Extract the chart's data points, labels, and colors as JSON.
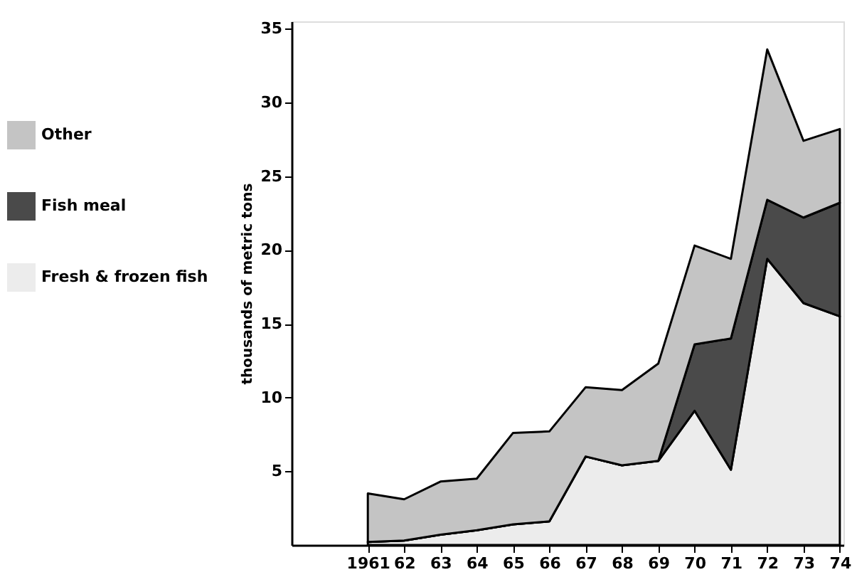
{
  "chart_data": {
    "type": "area",
    "stacked": true,
    "ylabel": "thousands of metric tons",
    "x": [
      1961,
      1962,
      1963,
      1964,
      1965,
      1966,
      1967,
      1968,
      1969,
      1970,
      1971,
      1972,
      1973,
      1974
    ],
    "series": [
      {
        "name": "Fresh & frozen fish",
        "color": "#ececec",
        "values": [
          0.2,
          0.3,
          0.7,
          1.0,
          1.4,
          1.6,
          6.0,
          5.4,
          5.7,
          9.1,
          5.1,
          19.4,
          16.4,
          15.5
        ]
      },
      {
        "name": "Fish meal",
        "color": "#4a4a4a",
        "values": [
          0,
          0,
          0,
          0,
          0,
          0,
          0,
          0,
          0,
          4.5,
          8.9,
          4.0,
          5.8,
          7.7
        ]
      },
      {
        "name": "Other",
        "color": "#c4c4c4",
        "values": [
          3.3,
          2.8,
          3.6,
          3.5,
          6.2,
          6.1,
          4.7,
          5.1,
          6.6,
          6.7,
          5.4,
          10.2,
          5.2,
          5.0
        ]
      }
    ],
    "xlim": [
      1958.9,
      1974.1
    ],
    "xticks": [
      1961,
      {
        "value": 1962,
        "label": "62"
      },
      {
        "value": 1963,
        "label": "63"
      },
      {
        "value": 1964,
        "label": "64"
      },
      {
        "value": 1965,
        "label": "65"
      },
      {
        "value": 1966,
        "label": "66"
      },
      {
        "value": 1967,
        "label": "67"
      },
      {
        "value": 1968,
        "label": "68"
      },
      {
        "value": 1969,
        "label": "69"
      },
      {
        "value": 1970,
        "label": "70"
      },
      {
        "value": 1971,
        "label": "71"
      },
      {
        "value": 1972,
        "label": "72"
      },
      {
        "value": 1973,
        "label": "73"
      },
      {
        "value": 1974,
        "label": "74"
      }
    ],
    "ylim": [
      0,
      35.5
    ],
    "yticks": [
      5,
      10,
      15,
      20,
      25,
      30,
      35
    ],
    "grid": false,
    "legend": "left"
  }
}
